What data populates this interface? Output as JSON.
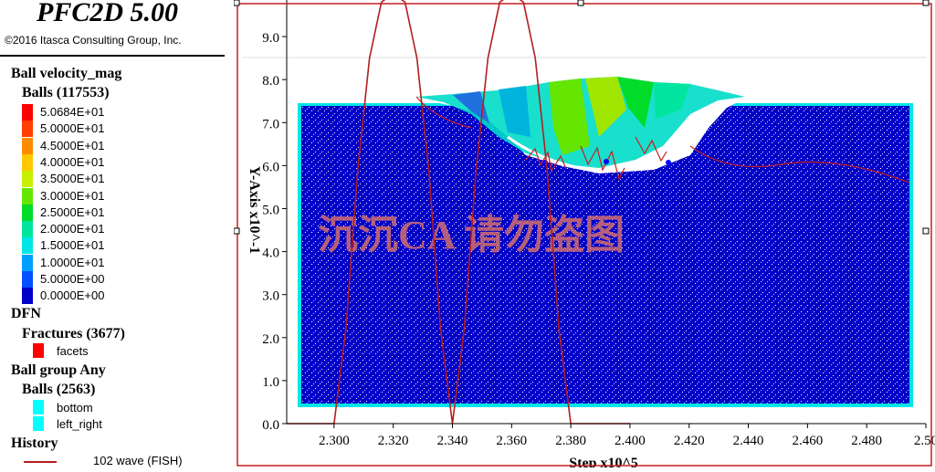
{
  "legend": {
    "app_title": "PFC2D 5.00",
    "copyright": "©2016 Itasca Consulting Group, Inc.",
    "velocity_title": "Ball velocity_mag",
    "velocity_balls": "Balls (117553)",
    "velocity_scale": [
      {
        "label": "5.0684E+01",
        "color": "#ff0000"
      },
      {
        "label": "5.0000E+01",
        "color": "#ff4000"
      },
      {
        "label": "4.5000E+01",
        "color": "#ff8c00"
      },
      {
        "label": "4.0000E+01",
        "color": "#ffc800"
      },
      {
        "label": "3.5000E+01",
        "color": "#c8f000"
      },
      {
        "label": "3.0000E+01",
        "color": "#64e600"
      },
      {
        "label": "2.5000E+01",
        "color": "#00dc28"
      },
      {
        "label": "2.0000E+01",
        "color": "#00e6a0"
      },
      {
        "label": "1.5000E+01",
        "color": "#00e6e6"
      },
      {
        "label": "1.0000E+01",
        "color": "#00a0ff"
      },
      {
        "label": "5.0000E+00",
        "color": "#0050ff"
      },
      {
        "label": "0.0000E+00",
        "color": "#0000c8"
      }
    ],
    "dfn_title": "DFN",
    "fractures_title": "Fractures (3677)",
    "facets_label": "facets",
    "facets_color": "#ff0000",
    "group_title": "Ball group Any",
    "group_balls": "Balls (2563)",
    "group_items": [
      {
        "label": "bottom",
        "color": "#00ffff"
      },
      {
        "label": "left_right",
        "color": "#00ffff"
      }
    ],
    "history_title": "History",
    "history_item": "102 wave (FISH)",
    "history_color": "#b41e1e"
  },
  "plot": {
    "watermark": "沉沉CA 请勿盗图",
    "specimen_color": "#0000c8",
    "border_color": "#00e6e6"
  },
  "chart_data": {
    "type": "line",
    "xlabel": "Step x10^5",
    "ylabel": "Y-Axis x10^-1",
    "xlim": [
      2.284,
      2.5
    ],
    "ylim": [
      0,
      9.85
    ],
    "x_ticks": [
      "2.300",
      "2.320",
      "2.340",
      "2.360",
      "2.380",
      "2.400",
      "2.420",
      "2.440",
      "2.460",
      "2.480",
      "2.50"
    ],
    "y_ticks": [
      "0.0",
      "1.0",
      "2.0",
      "3.0",
      "4.0",
      "5.0",
      "6.0",
      "7.0",
      "8.0",
      "9.0"
    ],
    "series": [
      {
        "name": "102 wave (FISH)",
        "x": [
          2.284,
          2.3,
          2.304,
          2.308,
          2.312,
          2.316,
          2.32,
          2.324,
          2.328,
          2.332,
          2.336,
          2.34,
          2.344,
          2.348,
          2.352,
          2.356,
          2.36,
          2.364,
          2.368,
          2.372,
          2.376,
          2.38,
          2.384,
          2.388,
          2.392,
          2.396,
          2.4
        ],
        "y": [
          0.0,
          0.0,
          2.2,
          5.9,
          8.5,
          9.8,
          10.0,
          9.8,
          8.5,
          5.9,
          2.2,
          0.0,
          2.2,
          5.9,
          8.5,
          9.8,
          10.0,
          9.8,
          8.5,
          5.9,
          2.2,
          0.0,
          0.0,
          0.0,
          0.0,
          0.0,
          0.0
        ]
      }
    ]
  }
}
